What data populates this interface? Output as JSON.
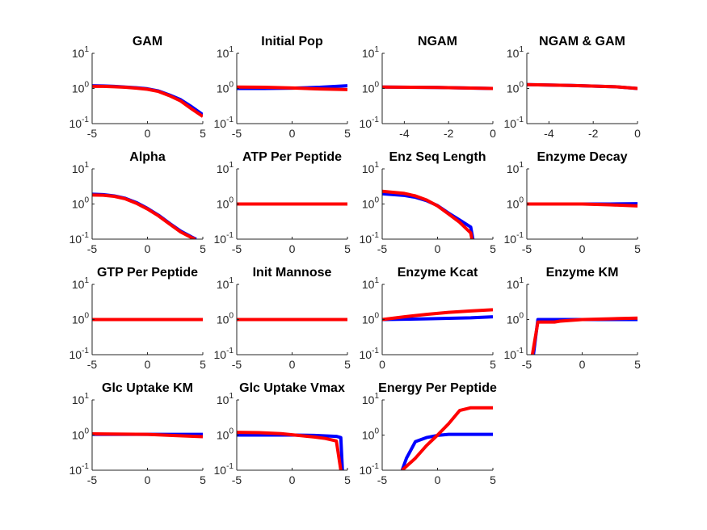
{
  "chart_data": [
    {
      "type": "line",
      "title": "GAM",
      "xlim": [
        -5,
        5
      ],
      "xticks": [
        -5,
        0,
        5
      ],
      "ylog": true,
      "ylim": [
        0.1,
        10
      ],
      "series": [
        {
          "color": "#0000ff",
          "x": [
            -5,
            -4,
            -3,
            -2,
            -1,
            0,
            1,
            2,
            3,
            4,
            5
          ],
          "y": [
            1.2,
            1.18,
            1.15,
            1.1,
            1.05,
            0.98,
            0.85,
            0.65,
            0.48,
            0.3,
            0.18
          ]
        },
        {
          "color": "#ff0000",
          "x": [
            -5,
            -4,
            -3,
            -2,
            -1,
            0,
            1,
            2,
            3,
            4,
            5
          ],
          "y": [
            1.15,
            1.15,
            1.12,
            1.08,
            1.02,
            0.95,
            0.82,
            0.62,
            0.44,
            0.26,
            0.16
          ]
        }
      ]
    },
    {
      "type": "line",
      "title": "Initial Pop",
      "xlim": [
        -5,
        5
      ],
      "xticks": [
        -5,
        0,
        5
      ],
      "ylog": true,
      "ylim": [
        0.1,
        10
      ],
      "series": [
        {
          "color": "#0000ff",
          "x": [
            -5,
            -2.5,
            0,
            2.5,
            5
          ],
          "y": [
            1.0,
            1.0,
            1.02,
            1.08,
            1.2
          ]
        },
        {
          "color": "#ff0000",
          "x": [
            -5,
            -2.5,
            0,
            2.5,
            5
          ],
          "y": [
            1.1,
            1.08,
            1.03,
            0.97,
            0.93
          ]
        }
      ]
    },
    {
      "type": "line",
      "title": "NGAM",
      "xlim": [
        -5,
        0
      ],
      "xticks": [
        -4,
        -2,
        0
      ],
      "ylog": true,
      "ylim": [
        0.1,
        10
      ],
      "series": [
        {
          "color": "#0000ff",
          "x": [
            -5,
            -2.5,
            0
          ],
          "y": [
            1.1,
            1.07,
            1.0
          ]
        },
        {
          "color": "#ff0000",
          "x": [
            -5,
            -2.5,
            0
          ],
          "y": [
            1.1,
            1.07,
            1.0
          ]
        }
      ]
    },
    {
      "type": "line",
      "title": "NGAM & GAM",
      "xlim": [
        -5,
        0
      ],
      "xticks": [
        -4,
        -2,
        0
      ],
      "ylog": true,
      "ylim": [
        0.1,
        10
      ],
      "series": [
        {
          "color": "#0000ff",
          "x": [
            -5,
            -3,
            -1,
            0
          ],
          "y": [
            1.28,
            1.22,
            1.12,
            1.0
          ]
        },
        {
          "color": "#ff0000",
          "x": [
            -5,
            -3,
            -1,
            0
          ],
          "y": [
            1.28,
            1.22,
            1.12,
            1.0
          ]
        }
      ]
    },
    {
      "type": "line",
      "title": "Alpha",
      "xlim": [
        -5,
        5
      ],
      "xticks": [
        -5,
        0,
        5
      ],
      "ylog": true,
      "ylim": [
        0.1,
        10
      ],
      "series": [
        {
          "color": "#0000ff",
          "x": [
            -5,
            -4,
            -3,
            -2,
            -1,
            0,
            1,
            2,
            3,
            4,
            4.4
          ],
          "y": [
            1.9,
            1.85,
            1.7,
            1.45,
            1.1,
            0.75,
            0.48,
            0.28,
            0.17,
            0.115,
            0.1
          ]
        },
        {
          "color": "#ff0000",
          "x": [
            -5,
            -4,
            -3,
            -2,
            -1,
            0,
            1,
            2,
            3,
            4,
            4.3
          ],
          "y": [
            1.8,
            1.78,
            1.65,
            1.4,
            1.05,
            0.72,
            0.46,
            0.27,
            0.16,
            0.11,
            0.1
          ]
        }
      ]
    },
    {
      "type": "line",
      "title": "ATP Per Peptide",
      "xlim": [
        -5,
        5
      ],
      "xticks": [
        -5,
        0,
        5
      ],
      "ylog": true,
      "ylim": [
        0.1,
        10
      ],
      "series": [
        {
          "color": "#0000ff",
          "x": [
            -5,
            5
          ],
          "y": [
            1.0,
            1.0
          ]
        },
        {
          "color": "#ff0000",
          "x": [
            -5,
            5
          ],
          "y": [
            1.0,
            1.0
          ]
        }
      ]
    },
    {
      "type": "line",
      "title": "Enz Seq Length",
      "xlim": [
        -5,
        5
      ],
      "xticks": [
        -5,
        0,
        5
      ],
      "ylog": true,
      "ylim": [
        0.1,
        10
      ],
      "series": [
        {
          "color": "#0000ff",
          "x": [
            -5,
            -3,
            -2,
            -1,
            0,
            1,
            2,
            3,
            3.2
          ],
          "y": [
            1.95,
            1.75,
            1.55,
            1.25,
            0.9,
            0.55,
            0.35,
            0.22,
            0.1
          ]
        },
        {
          "color": "#ff0000",
          "x": [
            -5,
            -3,
            -2,
            -1,
            0,
            1,
            2,
            3,
            3.1
          ],
          "y": [
            2.3,
            2.0,
            1.7,
            1.3,
            0.88,
            0.52,
            0.3,
            0.15,
            0.1
          ]
        }
      ]
    },
    {
      "type": "line",
      "title": "Enzyme Decay",
      "xlim": [
        -5,
        5
      ],
      "xticks": [
        -5,
        0,
        5
      ],
      "ylog": true,
      "ylim": [
        0.1,
        10
      ],
      "series": [
        {
          "color": "#0000ff",
          "x": [
            -5,
            0,
            2.5,
            5
          ],
          "y": [
            1.0,
            1.0,
            1.0,
            1.02
          ]
        },
        {
          "color": "#ff0000",
          "x": [
            -5,
            0,
            2.5,
            5
          ],
          "y": [
            1.0,
            1.0,
            0.95,
            0.88
          ]
        }
      ]
    },
    {
      "type": "line",
      "title": "GTP Per Peptide",
      "xlim": [
        -5,
        5
      ],
      "xticks": [
        -5,
        0,
        5
      ],
      "ylog": true,
      "ylim": [
        0.1,
        10
      ],
      "series": [
        {
          "color": "#0000ff",
          "x": [
            -5,
            5
          ],
          "y": [
            1.0,
            1.0
          ]
        },
        {
          "color": "#ff0000",
          "x": [
            -5,
            5
          ],
          "y": [
            1.0,
            1.0
          ]
        }
      ]
    },
    {
      "type": "line",
      "title": "Init Mannose",
      "xlim": [
        -5,
        5
      ],
      "xticks": [
        -5,
        0,
        5
      ],
      "ylog": true,
      "ylim": [
        0.1,
        10
      ],
      "series": [
        {
          "color": "#0000ff",
          "x": [
            -5,
            5
          ],
          "y": [
            1.0,
            1.0
          ]
        },
        {
          "color": "#ff0000",
          "x": [
            -5,
            5
          ],
          "y": [
            1.0,
            1.0
          ]
        }
      ]
    },
    {
      "type": "line",
      "title": "Enzyme Kcat",
      "xlim": [
        0,
        5
      ],
      "xticks": [
        0,
        5
      ],
      "ylog": true,
      "ylim": [
        0.1,
        10
      ],
      "series": [
        {
          "color": "#0000ff",
          "x": [
            0,
            1,
            2,
            3,
            4,
            5
          ],
          "y": [
            1.0,
            1.02,
            1.05,
            1.08,
            1.12,
            1.2
          ]
        },
        {
          "color": "#ff0000",
          "x": [
            0,
            1,
            2,
            3,
            4,
            5
          ],
          "y": [
            1.0,
            1.2,
            1.4,
            1.6,
            1.75,
            1.9
          ]
        }
      ]
    },
    {
      "type": "line",
      "title": "Enzyme KM",
      "xlim": [
        -5,
        5
      ],
      "xticks": [
        -5,
        0,
        5
      ],
      "ylog": true,
      "ylim": [
        0.1,
        10
      ],
      "series": [
        {
          "color": "#0000ff",
          "x": [
            -4.4,
            -4,
            -3,
            0,
            2.5,
            5
          ],
          "y": [
            0.1,
            1.0,
            1.0,
            1.0,
            1.0,
            1.0
          ]
        },
        {
          "color": "#ff0000",
          "x": [
            -4.5,
            -4,
            -2.5,
            -2,
            0,
            2.5,
            5
          ],
          "y": [
            0.1,
            0.85,
            0.85,
            0.9,
            1.0,
            1.05,
            1.1
          ]
        }
      ]
    },
    {
      "type": "line",
      "title": "Glc Uptake KM",
      "xlim": [
        -5,
        5
      ],
      "xticks": [
        -5,
        0,
        5
      ],
      "ylog": true,
      "ylim": [
        0.1,
        10
      ],
      "series": [
        {
          "color": "#0000ff",
          "x": [
            -5,
            0,
            2.5,
            5
          ],
          "y": [
            1.05,
            1.05,
            1.05,
            1.05
          ]
        },
        {
          "color": "#ff0000",
          "x": [
            -5,
            0,
            2.5,
            5
          ],
          "y": [
            1.08,
            1.05,
            0.97,
            0.9
          ]
        }
      ]
    },
    {
      "type": "line",
      "title": "Glc Uptake Vmax",
      "xlim": [
        -5,
        5
      ],
      "xticks": [
        -5,
        0,
        5
      ],
      "ylog": true,
      "ylim": [
        0.1,
        10
      ],
      "series": [
        {
          "color": "#0000ff",
          "x": [
            -5,
            -2,
            0,
            2,
            4,
            4.4,
            4.55
          ],
          "y": [
            1.0,
            1.0,
            1.0,
            0.98,
            0.92,
            0.85,
            0.1
          ]
        },
        {
          "color": "#ff0000",
          "x": [
            -5,
            -3,
            -1,
            0,
            1,
            2,
            3,
            4,
            4.4
          ],
          "y": [
            1.2,
            1.17,
            1.1,
            1.02,
            0.95,
            0.88,
            0.8,
            0.68,
            0.1
          ]
        }
      ]
    },
    {
      "type": "line",
      "title": "Energy Per Peptide",
      "xlim": [
        -5,
        5
      ],
      "xticks": [
        -5,
        0,
        5
      ],
      "ylog": true,
      "ylim": [
        0.1,
        10
      ],
      "series": [
        {
          "color": "#0000ff",
          "x": [
            -3.2,
            -2.8,
            -2,
            -1,
            0,
            1,
            2,
            3,
            5
          ],
          "y": [
            0.1,
            0.22,
            0.65,
            0.85,
            0.98,
            1.05,
            1.05,
            1.05,
            1.05
          ]
        },
        {
          "color": "#ff0000",
          "x": [
            -3.2,
            -2,
            -1,
            0,
            1,
            2,
            3,
            5
          ],
          "y": [
            0.1,
            0.22,
            0.5,
            1.0,
            2.1,
            5.0,
            6.0,
            6.0
          ]
        }
      ]
    }
  ]
}
